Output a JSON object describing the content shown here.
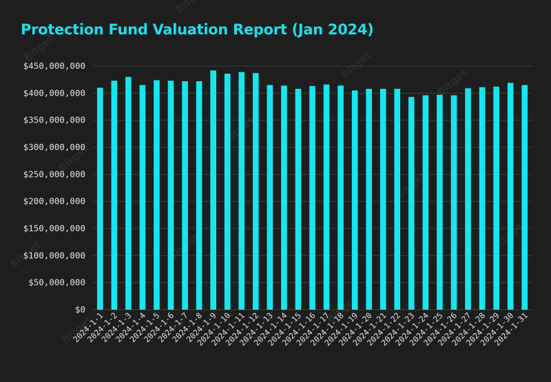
{
  "colors": {
    "background": "#1e1e1e",
    "bar": "#16e6ee",
    "title": "#22dcec",
    "grid": "#3e3e3e",
    "tick_text": "#e2e2e2",
    "watermark": "#2b2b2b"
  },
  "watermark": "Bitget",
  "chart_data": {
    "type": "bar",
    "title": "Protection Fund Valuation Report (Jan 2024)",
    "xlabel": "",
    "ylabel": "",
    "ylim": [
      0,
      450000000
    ],
    "yticks": [
      0,
      50000000,
      100000000,
      150000000,
      200000000,
      250000000,
      300000000,
      350000000,
      400000000,
      450000000
    ],
    "ytick_labels": [
      "$0",
      "$50,000,000",
      "$100,000,000",
      "$150,000,000",
      "$200,000,000",
      "$250,000,000",
      "$300,000,000",
      "$350,000,000",
      "$400,000,000",
      "$450,000,000"
    ],
    "grid": "horizontal",
    "legend": "none",
    "categories": [
      "2024-1-1",
      "2024-1-2",
      "2024-1-3",
      "2024-1-4",
      "2024-1-5",
      "2024-1-6",
      "2024-1-7",
      "2024-1-8",
      "2024-1-9",
      "2024-1-10",
      "2024-1-11",
      "2024-1-12",
      "2024-1-13",
      "2024-1-14",
      "2024-1-15",
      "2024-1-16",
      "2024-1-17",
      "2024-1-18",
      "2024-1-19",
      "2024-1-20",
      "2024-1-21",
      "2024-1-22",
      "2024-1-23",
      "2024-1-24",
      "2024-1-25",
      "2024-1-26",
      "2024-1-27",
      "2024-1-28",
      "2024-1-29",
      "2024-1-30",
      "2024-1-31"
    ],
    "values": [
      410000000,
      423000000,
      430000000,
      415000000,
      424000000,
      423000000,
      422000000,
      422000000,
      442000000,
      436000000,
      439000000,
      437000000,
      415000000,
      414000000,
      408000000,
      413000000,
      416000000,
      414000000,
      405000000,
      408000000,
      408000000,
      408000000,
      393000000,
      396000000,
      397000000,
      396000000,
      409000000,
      411000000,
      412000000,
      419000000,
      415000000
    ]
  }
}
